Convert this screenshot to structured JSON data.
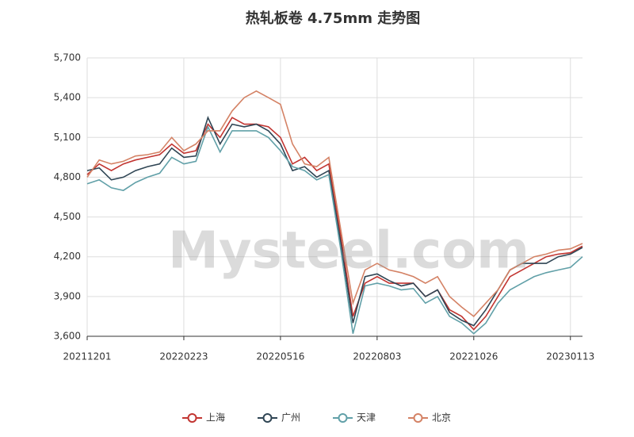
{
  "chart_data": {
    "type": "line",
    "title": "热轧板卷 4.75mm 走势图",
    "watermark": "Mysteel.com",
    "categories": [
      "20211201",
      null,
      null,
      null,
      null,
      null,
      null,
      null,
      "20220223",
      null,
      null,
      null,
      null,
      null,
      null,
      null,
      "20220516",
      null,
      null,
      null,
      null,
      null,
      null,
      null,
      "20220803",
      null,
      null,
      null,
      null,
      null,
      null,
      null,
      "20221026",
      null,
      null,
      null,
      null,
      null,
      null,
      null,
      "20230113",
      null
    ],
    "series": [
      {
        "name": "上海",
        "color": "#c23531",
        "values": [
          4820,
          4900,
          4850,
          4900,
          4930,
          4950,
          4970,
          5050,
          4980,
          5000,
          5200,
          5100,
          5250,
          5200,
          5200,
          5180,
          5100,
          4900,
          4950,
          4850,
          4900,
          4350,
          3750,
          4000,
          4050,
          4000,
          4000,
          4000,
          3900,
          3950,
          3800,
          3750,
          3650,
          3750,
          3900,
          4050,
          4100,
          4150,
          4200,
          4220,
          4230,
          4280
        ]
      },
      {
        "name": "广州",
        "color": "#2f4554",
        "values": [
          4850,
          4870,
          4780,
          4800,
          4850,
          4880,
          4900,
          5020,
          4950,
          4960,
          5250,
          5050,
          5200,
          5180,
          5200,
          5150,
          5050,
          4850,
          4880,
          4800,
          4850,
          4300,
          3700,
          4050,
          4070,
          4020,
          3980,
          4000,
          3900,
          3950,
          3780,
          3720,
          3680,
          3800,
          3950,
          4100,
          4150,
          4150,
          4150,
          4200,
          4220,
          4270
        ]
      },
      {
        "name": "天津",
        "color": "#61a0a8",
        "values": [
          4750,
          4780,
          4720,
          4700,
          4760,
          4800,
          4830,
          4950,
          4900,
          4920,
          5180,
          4990,
          5150,
          5150,
          5150,
          5100,
          5000,
          4880,
          4850,
          4780,
          4820,
          4250,
          3620,
          3980,
          4000,
          3980,
          3950,
          3960,
          3850,
          3900,
          3750,
          3700,
          3620,
          3700,
          3850,
          3950,
          4000,
          4050,
          4080,
          4100,
          4120,
          4200
        ]
      },
      {
        "name": "北京",
        "color": "#d48265",
        "values": [
          4800,
          4930,
          4900,
          4920,
          4960,
          4970,
          4990,
          5100,
          5000,
          5050,
          5150,
          5150,
          5300,
          5400,
          5450,
          5400,
          5350,
          5050,
          4900,
          4880,
          4950,
          4400,
          3850,
          4100,
          4150,
          4100,
          4080,
          4050,
          4000,
          4050,
          3900,
          3820,
          3750,
          3850,
          3950,
          4100,
          4150,
          4200,
          4220,
          4250,
          4260,
          4300
        ]
      }
    ],
    "ylim": [
      3600,
      5700
    ],
    "yticks": [
      {
        "value": 3600,
        "label": "3,600"
      },
      {
        "value": 3900,
        "label": "3,900"
      },
      {
        "value": 4200,
        "label": "4,200"
      },
      {
        "value": 4500,
        "label": "4,500"
      },
      {
        "value": 4800,
        "label": "4,800"
      },
      {
        "value": 5100,
        "label": "5,100"
      },
      {
        "value": 5400,
        "label": "5,400"
      },
      {
        "value": 5700,
        "label": "5,700"
      }
    ],
    "grid": true,
    "legend": "bottom"
  }
}
